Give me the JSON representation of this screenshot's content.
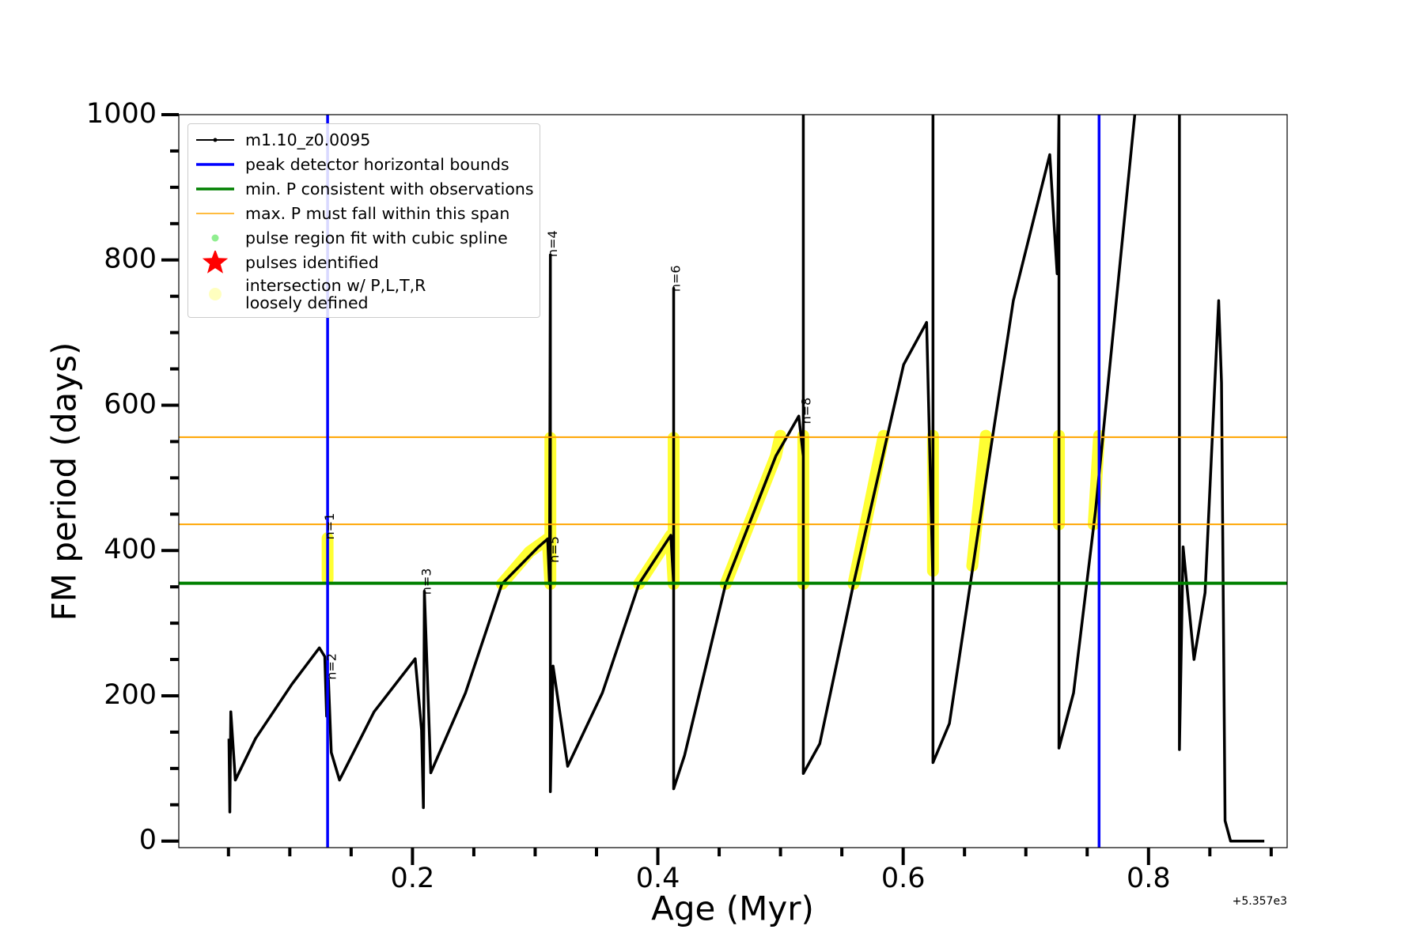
{
  "chart_data": {
    "type": "line",
    "x_label": "Age (Myr)",
    "y_label": "FM period (days)",
    "x_offset_text": "+5.357e3",
    "xlim": [
      0.0095,
      0.913
    ],
    "ylim": [
      -9,
      1000
    ],
    "xticks": [
      0.2,
      0.4,
      0.6,
      0.8
    ],
    "yticks": [
      0,
      200,
      400,
      600,
      800,
      1000
    ],
    "xminorticks": [
      0.05,
      0.1,
      0.15,
      0.25,
      0.3,
      0.35,
      0.45,
      0.5,
      0.55,
      0.65,
      0.7,
      0.75,
      0.85,
      0.9
    ],
    "yminorticks": [
      50,
      100,
      150,
      250,
      300,
      350,
      450,
      500,
      550,
      650,
      700,
      750,
      850,
      900,
      950
    ],
    "legend": "upper left",
    "series": [
      {
        "name": "m1.10_z0.0095",
        "type": "line",
        "color": "#000000",
        "x": [
          0.0504,
          0.0511,
          0.0519,
          0.0556,
          0.072,
          0.1017,
          0.1241,
          0.1285,
          0.13,
          0.1315,
          0.1338,
          0.1405,
          0.1687,
          0.2022,
          0.2074,
          0.2089,
          0.2097,
          0.2149,
          0.2432,
          0.2729,
          0.3027,
          0.3102,
          0.3117,
          0.3124,
          0.3124,
          0.3146,
          0.3265,
          0.3548,
          0.3846,
          0.4106,
          0.4129,
          0.4129,
          0.4129,
          0.4218,
          0.4553,
          0.4962,
          0.5149,
          0.5186,
          0.5186,
          0.5186,
          0.532,
          0.5595,
          0.6004,
          0.6191,
          0.6243,
          0.6243,
          0.6243,
          0.6377,
          0.6637,
          0.6898,
          0.7195,
          0.7255,
          0.727,
          0.727,
          0.7389,
          0.7568,
          0.7888,
          null,
          0.8252,
          0.8252,
          0.8282,
          0.8371,
          0.8461,
          0.8572,
          0.8595,
          0.8624,
          0.8669,
          0.8944
        ],
        "values": [
          141,
          40,
          178,
          84,
          141,
          216,
          266,
          254,
          172,
          222,
          122,
          84,
          178,
          251,
          153,
          46,
          344,
          94,
          204,
          354,
          405,
          416,
          354,
          807,
          68,
          241,
          103,
          204,
          354,
          421,
          354,
          761,
          72,
          118,
          354,
          530,
          585,
          530,
          1000,
          93,
          134,
          354,
          656,
          714,
          354,
          1000,
          108,
          162,
          455,
          744,
          945,
          781,
          1000,
          128,
          204,
          455,
          1000,
          null,
          1000,
          126,
          405,
          250,
          342,
          744,
          631,
          28,
          0,
          0
        ]
      },
      {
        "name": "peak detector horizontal bounds",
        "type": "vline",
        "color": "#0000ff",
        "x": [
          0.1308,
          0.7597
        ]
      },
      {
        "name": "min. P consistent with observations",
        "type": "hline",
        "color": "#008000",
        "values": [
          355
        ]
      },
      {
        "name": "max. P must fall within this span",
        "type": "hline",
        "color": "#ffa500",
        "values": [
          436,
          556
        ]
      },
      {
        "name": "pulse region fit with cubic spline",
        "type": "scatter",
        "color": "#90ee90",
        "x": [],
        "values": []
      },
      {
        "name": "pulses identified",
        "type": "star",
        "color": "#ff0000",
        "x": [],
        "values": []
      },
      {
        "name": "intersection w/ P,L,T,R\nloosely defined",
        "type": "highlight",
        "color": "#ffff00",
        "x": [
          0.1308,
          0.1308,
          null,
          0.2729,
          0.2953,
          0.3102,
          0.3124,
          null,
          0.3124,
          0.3124,
          null,
          0.3846,
          0.4106,
          0.4129,
          null,
          0.4129,
          0.4129,
          null,
          0.4553,
          0.4962,
          0.4999,
          null,
          0.5186,
          0.5186,
          null,
          0.5595,
          0.5841,
          null,
          0.6243,
          0.6243,
          null,
          0.6563,
          0.6674,
          null,
          0.727,
          0.727,
          null,
          0.7553,
          0.7597
        ],
        "values": [
          417,
          361,
          null,
          354,
          398,
          416,
          354,
          null,
          555,
          354,
          null,
          354,
          421,
          354,
          null,
          555,
          354,
          null,
          354,
          530,
          558,
          null,
          558,
          354,
          null,
          354,
          558,
          null,
          558,
          372,
          null,
          379,
          558,
          null,
          558,
          436,
          null,
          436,
          558
        ]
      }
    ],
    "annotations": [
      {
        "text": "n=1",
        "x": 0.136,
        "y": 415
      },
      {
        "text": "n=2",
        "x": 0.1375,
        "y": 222
      },
      {
        "text": "n=3",
        "x": 0.2149,
        "y": 339
      },
      {
        "text": "n=4",
        "x": 0.3176,
        "y": 804
      },
      {
        "text": "n=5",
        "x": 0.3191,
        "y": 383
      },
      {
        "text": "n=6",
        "x": 0.4181,
        "y": 756
      },
      {
        "text": "n=8",
        "x": 0.5245,
        "y": 574
      }
    ]
  }
}
